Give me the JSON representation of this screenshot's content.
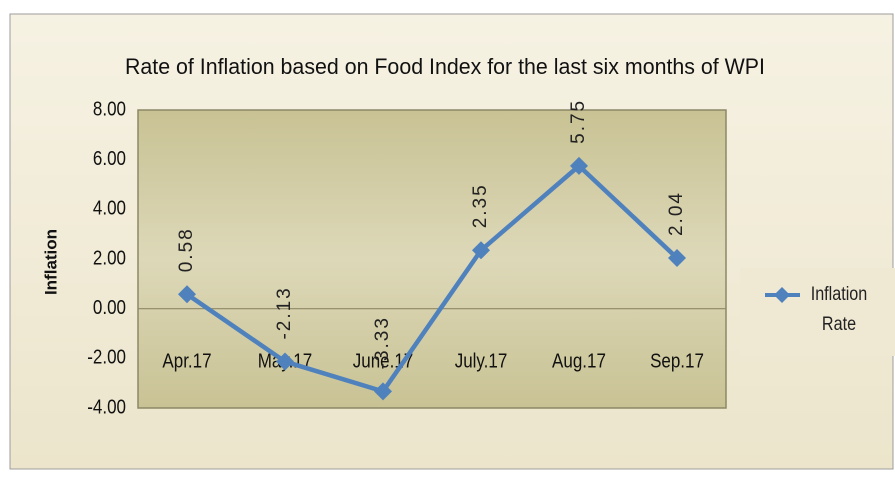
{
  "chart_data": {
    "type": "line",
    "title": "Rate of Inflation based on Food Index for the last six months of WPI",
    "y_label": "Inflation",
    "categories": [
      "Apr.17",
      "May.17",
      "June.17",
      "July.17",
      "Aug.17",
      "Sep.17"
    ],
    "series": [
      {
        "name": "Inflation Rate",
        "color": "#4f81bd",
        "values": [
          0.58,
          -2.13,
          -3.33,
          2.35,
          5.75,
          2.04
        ]
      }
    ],
    "ylim": [
      -4,
      8
    ],
    "yticks": [
      {
        "value": 8,
        "label": "8.00"
      },
      {
        "value": 6,
        "label": "6.00"
      },
      {
        "value": 4,
        "label": "4.00"
      },
      {
        "value": 2,
        "label": "2.00"
      },
      {
        "value": 0,
        "label": "0.00"
      },
      {
        "value": -2,
        "label": "-2.00"
      },
      {
        "value": -4,
        "label": "-4.00"
      }
    ],
    "grid": false,
    "legend": "right",
    "data_labels": true
  }
}
